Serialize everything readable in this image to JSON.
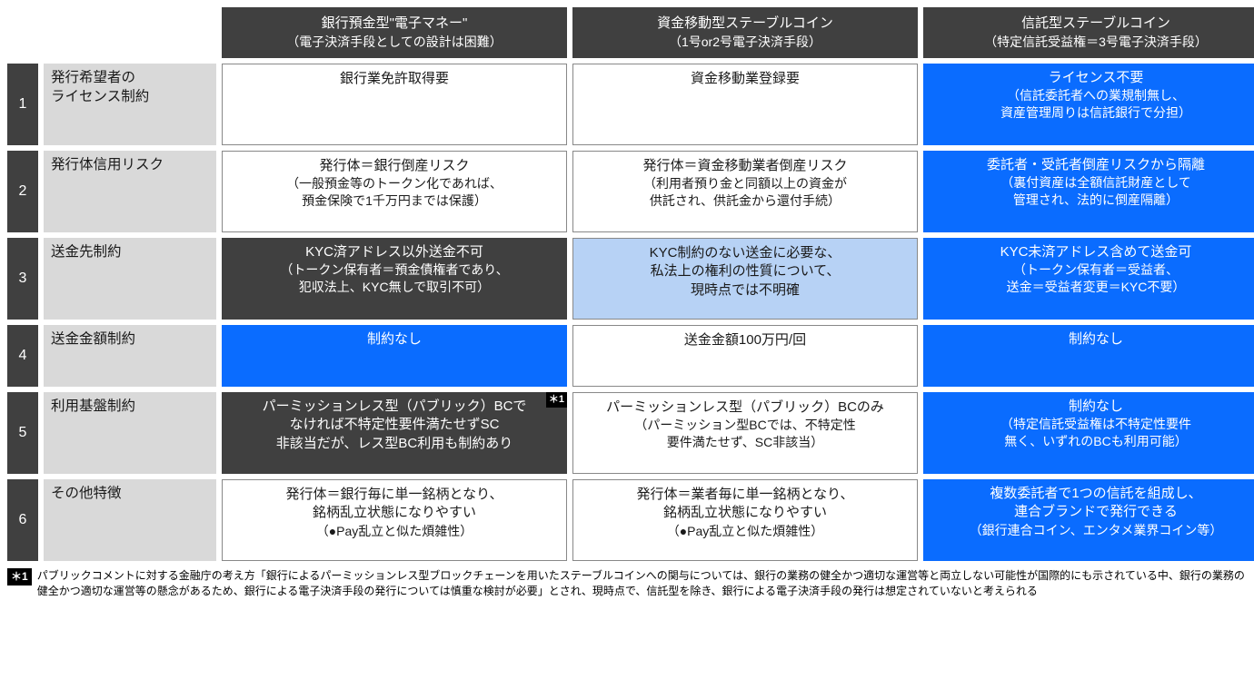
{
  "columns": [
    {
      "title": "銀行預金型\"電子マネー\"",
      "sub": "（電子決済手段としての設計は困難）"
    },
    {
      "title": "資金移動型ステーブルコイン",
      "sub": "（1号or2号電子決済手段）"
    },
    {
      "title": "信託型ステーブルコイン",
      "sub": "（特定信託受益権＝3号電子決済手段）"
    }
  ],
  "rows": [
    {
      "num": "1",
      "label": "発行希望者の\nライセンス制約",
      "cells": [
        {
          "style": "white",
          "main": "銀行業免許取得要",
          "sub": ""
        },
        {
          "style": "white",
          "main": "資金移動業登録要",
          "sub": ""
        },
        {
          "style": "blue",
          "main": "ライセンス不要",
          "sub": "（信託委託者への業規制無し、\n資産管理周りは信託銀行で分担）"
        }
      ]
    },
    {
      "num": "2",
      "label": "発行体信用リスク",
      "cells": [
        {
          "style": "white",
          "main": "発行体＝銀行倒産リスク",
          "sub": "（一般預金等のトークン化であれば、\n預金保険で1千万円までは保護）"
        },
        {
          "style": "white",
          "main": "発行体＝資金移動業者倒産リスク",
          "sub": "（利用者預り金と同額以上の資金が\n供託され、供託金から還付手続）"
        },
        {
          "style": "blue",
          "main": "委託者・受託者倒産リスクから隔離",
          "sub": "（裏付資産は全額信託財産として\n管理され、法的に倒産隔離）"
        }
      ]
    },
    {
      "num": "3",
      "label": "送金先制約",
      "cells": [
        {
          "style": "dark",
          "main": "KYC済アドレス以外送金不可",
          "sub": "（トークン保有者＝預金債権者であり、\n犯収法上、KYC無しで取引不可）"
        },
        {
          "style": "lightblue",
          "main": "KYC制約のない送金に必要な、\n私法上の権利の性質について、\n現時点では不明確",
          "sub": ""
        },
        {
          "style": "blue",
          "main": "KYC未済アドレス含めて送金可",
          "sub": "（トークン保有者＝受益者、\n送金＝受益者変更＝KYC不要）"
        }
      ]
    },
    {
      "num": "4",
      "label": "送金金額制約",
      "cells": [
        {
          "style": "blue",
          "main": "制約なし",
          "sub": ""
        },
        {
          "style": "white",
          "main": "送金金額100万円/回",
          "sub": ""
        },
        {
          "style": "blue",
          "main": "制約なし",
          "sub": ""
        }
      ]
    },
    {
      "num": "5",
      "label": "利用基盤制約",
      "cells": [
        {
          "style": "dark",
          "main": "パーミッションレス型（パブリック）BCで\nなければ不特定性要件満たせずSC\n非該当だが、レス型BC利用も制約あり",
          "sub": "",
          "badge": "＊1"
        },
        {
          "style": "white",
          "main": "パーミッションレス型（パブリック）BCのみ",
          "sub": "（パーミッション型BCでは、不特定性\n要件満たせず、SC非該当）"
        },
        {
          "style": "blue",
          "main": "制約なし",
          "sub": "（特定信託受益権は不特定性要件\n無く、いずれのBCも利用可能）"
        }
      ]
    },
    {
      "num": "6",
      "label": "その他特徴",
      "cells": [
        {
          "style": "white",
          "main": "発行体＝銀行毎に単一銘柄となり、\n銘柄乱立状態になりやすい",
          "sub": "（●Pay乱立と似た煩雑性）"
        },
        {
          "style": "white",
          "main": "発行体＝業者毎に単一銘柄となり、\n銘柄乱立状態になりやすい",
          "sub": "（●Pay乱立と似た煩雑性）"
        },
        {
          "style": "blue",
          "main": "複数委託者で1つの信託を組成し、\n連合ブランドで発行できる",
          "sub": "（銀行連合コイン、エンタメ業界コイン等）"
        }
      ]
    }
  ],
  "footnote": {
    "tag": "＊1",
    "text": "パブリックコメントに対する金融庁の考え方「銀行によるパーミッションレス型ブロックチェーンを用いたステーブルコインへの関与については、銀行の業務の健全かつ適切な運営等と両立しない可能性が国際的にも示されている中、銀行の業務の健全かつ適切な運営等の懸念があるため、銀行による電子決済手段の発行については慎重な検討が必要」とされ、現時点で、信託型を除き、銀行による電子決済手段の発行は想定されていないと考えられる"
  },
  "colors": {
    "dark": "#404040",
    "grey": "#d9d9d9",
    "blue": "#0a6cff",
    "lightblue": "#b7d2f5",
    "white": "#ffffff"
  }
}
